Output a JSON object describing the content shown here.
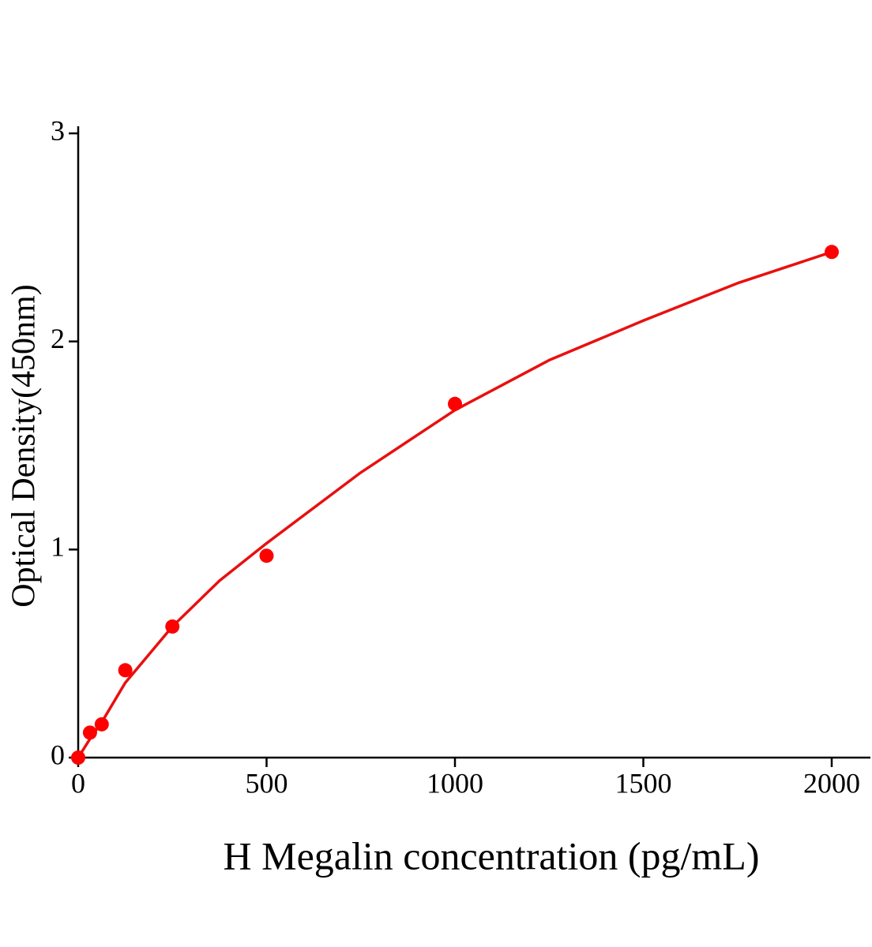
{
  "chart_data": {
    "type": "scatter",
    "xlabel": "H Megalin concentration (pg/mL)",
    "ylabel": "Optical Density(450nm)",
    "xlim": [
      0,
      2100
    ],
    "xticks": [
      0,
      500,
      1000,
      1500,
      2000
    ],
    "ylim": [
      0,
      3
    ],
    "yticks": [
      0,
      1,
      2,
      3
    ],
    "series": [
      {
        "type": "scatter",
        "color": "#ff0000",
        "x": [
          0,
          31.25,
          62.5,
          125,
          250,
          500,
          1000,
          2000
        ],
        "values": [
          0,
          0.12,
          0.16,
          0.42,
          0.63,
          0.97,
          1.7,
          2.43
        ]
      },
      {
        "type": "line",
        "color": "#e8100f",
        "x": [
          0,
          31.25,
          62.5,
          125,
          250,
          375,
          500,
          750,
          1000,
          1250,
          1500,
          1750,
          2000
        ],
        "values": [
          0,
          0.09,
          0.17,
          0.36,
          0.63,
          0.85,
          1.03,
          1.37,
          1.67,
          1.91,
          2.1,
          2.28,
          2.43
        ]
      }
    ]
  }
}
